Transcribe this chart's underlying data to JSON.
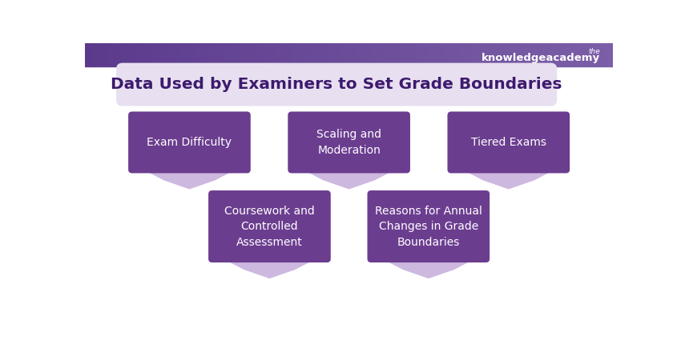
{
  "title": "Data Used by Examiners to Set Grade Boundaries",
  "title_bg": "#e8e0f0",
  "title_color": "#3d1a6e",
  "header_color1": "#5b3a8c",
  "header_color2": "#7b5ea7",
  "bg_color": "#ffffff",
  "box_color": "#6b3d8f",
  "box_text_color": "#ffffff",
  "tab_color": "#cdb8e0",
  "logo_text_the": "the",
  "logo_text_main": "knowledgeacademy",
  "items": [
    {
      "label": "Exam Difficulty",
      "row": 0,
      "col": 0
    },
    {
      "label": "Scaling and\nModeration",
      "row": 0,
      "col": 1
    },
    {
      "label": "Tiered Exams",
      "row": 0,
      "col": 2
    },
    {
      "label": "Coursework and\nControlled\nAssessment",
      "row": 1,
      "col": 0
    },
    {
      "label": "Reasons for Annual\nChanges in Grade\nBoundaries",
      "row": 1,
      "col": 1
    }
  ],
  "figsize": [
    8.5,
    4.5
  ],
  "dpi": 100
}
